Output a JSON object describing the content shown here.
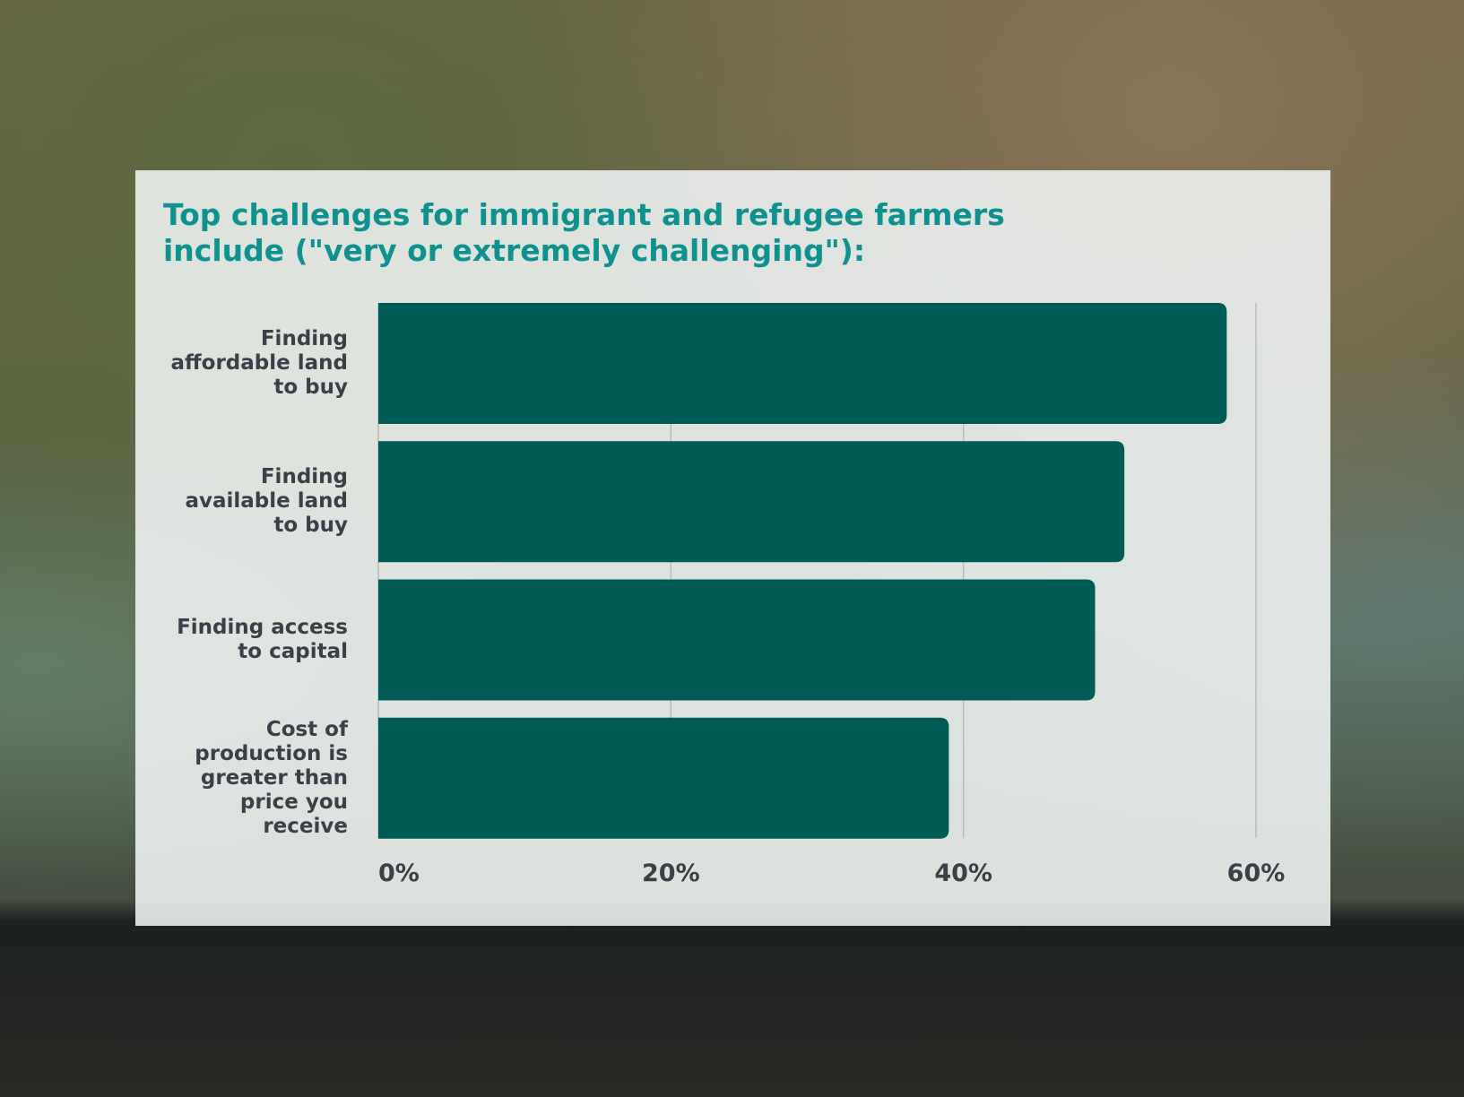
{
  "chart_data": {
    "type": "hbar",
    "title": "Top challenges for immigrant and refugee farmers include (\"very or extremely challenging\"):",
    "categories": [
      "Finding affordable land to buy",
      "Finding available land to buy",
      "Finding access to capital",
      "Cost of production is greater than price you receive"
    ],
    "values": [
      58,
      51,
      49,
      39
    ],
    "color": "#005a55",
    "xlim": [
      0,
      60
    ],
    "xticks": [
      {
        "value": 0,
        "label": "0%"
      },
      {
        "value": 20,
        "label": "20%"
      },
      {
        "value": 40,
        "label": "40%"
      },
      {
        "value": 60,
        "label": "60%"
      }
    ],
    "grid": true
  }
}
